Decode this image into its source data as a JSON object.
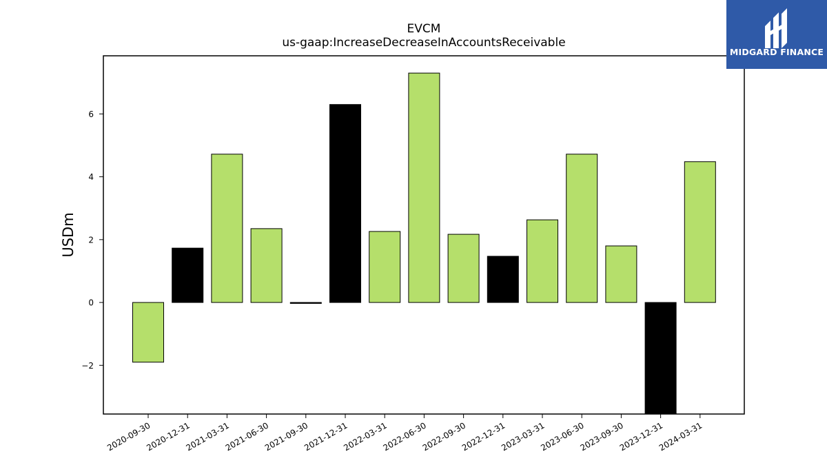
{
  "chart_data": {
    "type": "bar",
    "title": "EVCM",
    "subtitle": "us-gaap:IncreaseDecreaseInAccountsReceivable",
    "ylabel": "USDm",
    "xlabel": "",
    "ylim": [
      -3.55,
      7.85
    ],
    "yticks": [
      -2,
      0,
      2,
      4,
      6
    ],
    "grid": false,
    "categories": [
      "2020-09-30",
      "2020-12-31",
      "2021-03-31",
      "2021-06-30",
      "2021-09-30",
      "2021-12-31",
      "2022-03-31",
      "2022-06-30",
      "2022-09-30",
      "2022-12-31",
      "2023-03-31",
      "2023-06-30",
      "2023-09-30",
      "2023-12-31",
      "2024-03-31"
    ],
    "values": [
      -1.9,
      1.73,
      4.72,
      2.35,
      -0.03,
      6.3,
      2.26,
      7.3,
      2.17,
      1.47,
      2.63,
      4.72,
      1.8,
      -3.7,
      4.48
    ],
    "colors": [
      "#b5df6b",
      "#000000",
      "#b5df6b",
      "#b5df6b",
      "#000000",
      "#000000",
      "#b5df6b",
      "#b5df6b",
      "#b5df6b",
      "#000000",
      "#b5df6b",
      "#b5df6b",
      "#b5df6b",
      "#000000",
      "#b5df6b"
    ]
  },
  "logo": {
    "text": "MIDGARD FINANCE",
    "background": "#2f5aa8"
  }
}
